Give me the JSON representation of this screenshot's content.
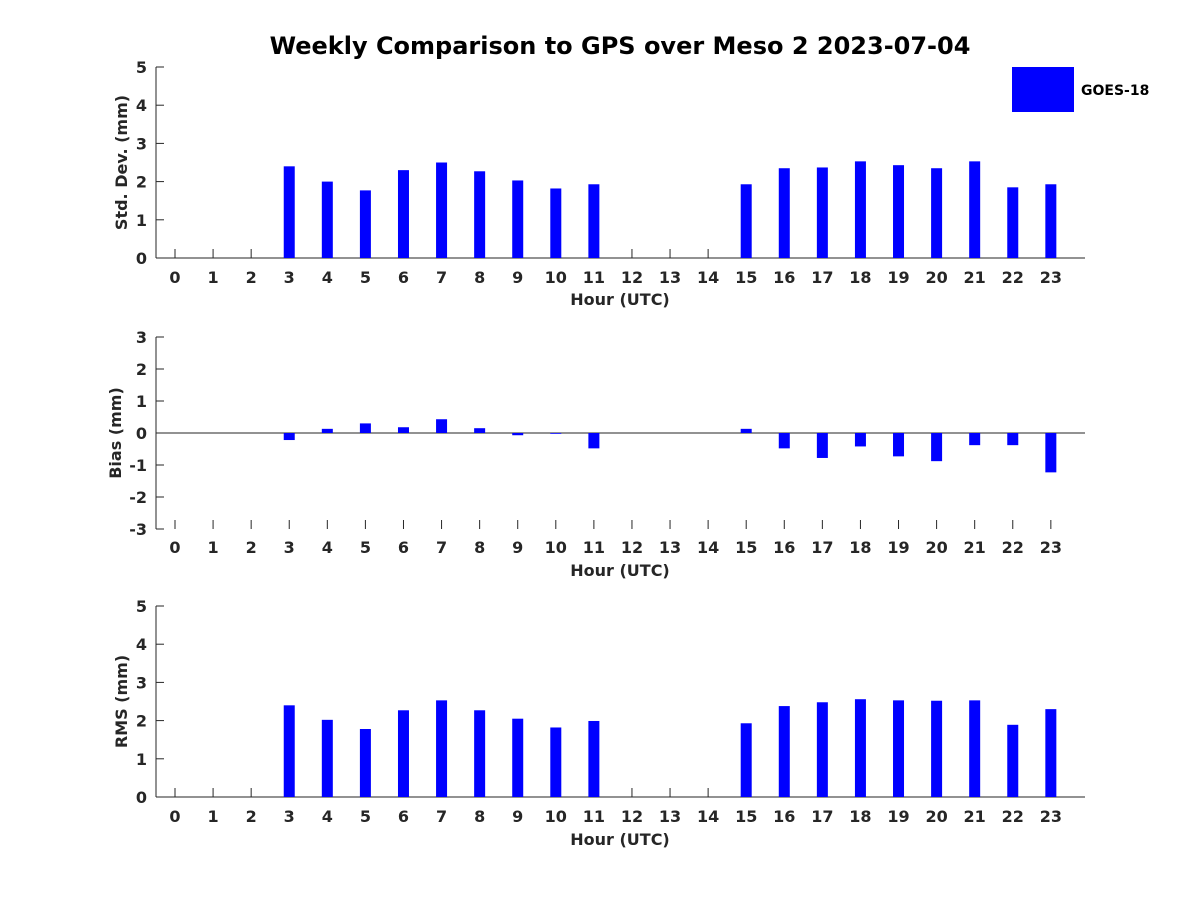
{
  "title": "Weekly Comparison to GPS over Meso 2 2023-07-04",
  "legend": {
    "label": "GOES-18",
    "color": "#0000ff"
  },
  "chart_data": [
    {
      "type": "bar",
      "id": "std",
      "categories": [
        "0",
        "1",
        "2",
        "3",
        "4",
        "5",
        "6",
        "7",
        "8",
        "9",
        "10",
        "11",
        "12",
        "13",
        "14",
        "15",
        "16",
        "17",
        "18",
        "19",
        "20",
        "21",
        "22",
        "23"
      ],
      "series": [
        {
          "name": "GOES-18",
          "values": [
            null,
            null,
            null,
            2.4,
            2.0,
            1.77,
            2.3,
            2.5,
            2.27,
            2.03,
            1.82,
            1.93,
            null,
            null,
            null,
            1.93,
            2.35,
            2.37,
            2.53,
            2.43,
            2.35,
            2.53,
            1.85,
            1.93
          ]
        }
      ],
      "xlabel": "Hour (UTC)",
      "ylabel": "Std. Dev. (mm)",
      "ylim": [
        0,
        5
      ],
      "yticks": [
        "0",
        "1",
        "2",
        "3",
        "4",
        "5"
      ],
      "legend": "top-right"
    },
    {
      "type": "bar",
      "id": "bias",
      "categories": [
        "0",
        "1",
        "2",
        "3",
        "4",
        "5",
        "6",
        "7",
        "8",
        "9",
        "10",
        "11",
        "12",
        "13",
        "14",
        "15",
        "16",
        "17",
        "18",
        "19",
        "20",
        "21",
        "22",
        "23"
      ],
      "series": [
        {
          "name": "GOES-18",
          "values": [
            null,
            null,
            null,
            -0.22,
            0.13,
            0.3,
            0.18,
            0.43,
            0.15,
            -0.07,
            -0.02,
            -0.48,
            null,
            null,
            null,
            0.13,
            -0.48,
            -0.78,
            -0.42,
            -0.73,
            -0.88,
            -0.38,
            -0.38,
            -1.23
          ]
        }
      ],
      "xlabel": "Hour (UTC)",
      "ylabel": "Bias (mm)",
      "ylim": [
        -3,
        3
      ],
      "yticks": [
        "-3",
        "-2",
        "-1",
        "0",
        "1",
        "2",
        "3"
      ]
    },
    {
      "type": "bar",
      "id": "rms",
      "categories": [
        "0",
        "1",
        "2",
        "3",
        "4",
        "5",
        "6",
        "7",
        "8",
        "9",
        "10",
        "11",
        "12",
        "13",
        "14",
        "15",
        "16",
        "17",
        "18",
        "19",
        "20",
        "21",
        "22",
        "23"
      ],
      "series": [
        {
          "name": "GOES-18",
          "values": [
            null,
            null,
            null,
            2.4,
            2.02,
            1.78,
            2.27,
            2.53,
            2.27,
            2.05,
            1.82,
            1.99,
            null,
            null,
            null,
            1.93,
            2.38,
            2.48,
            2.56,
            2.53,
            2.52,
            2.53,
            1.89,
            2.3
          ]
        }
      ],
      "xlabel": "Hour (UTC)",
      "ylabel": "RMS (mm)",
      "ylim": [
        0,
        5
      ],
      "yticks": [
        "0",
        "1",
        "2",
        "3",
        "4",
        "5"
      ]
    }
  ]
}
